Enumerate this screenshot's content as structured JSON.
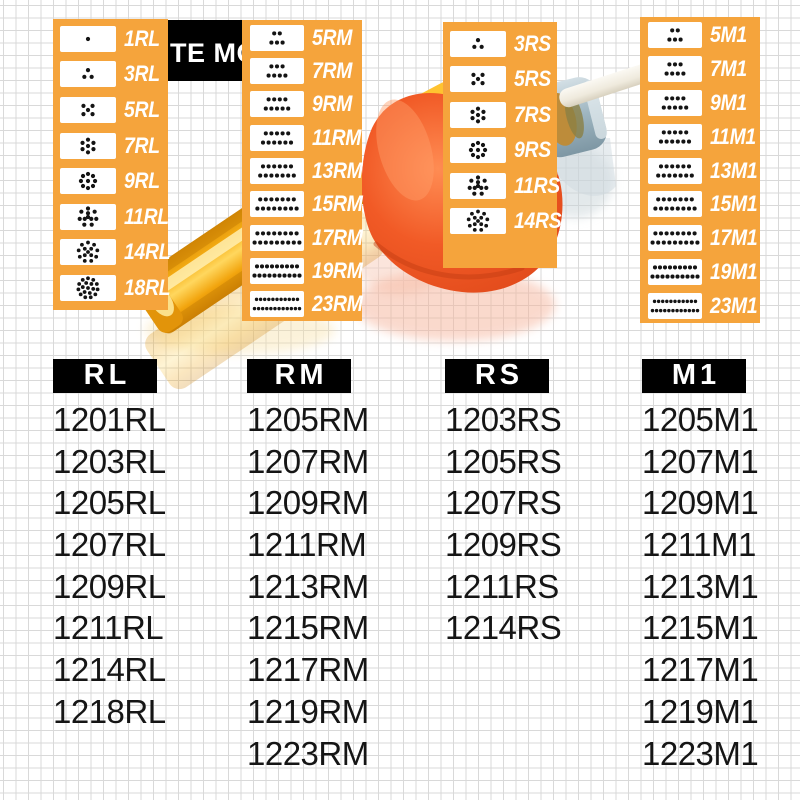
{
  "banner": {
    "visible_text": "TE MO"
  },
  "needle_columns": [
    {
      "name": "RL",
      "pattern": "round",
      "badges": [
        {
          "label": "1RL",
          "needle_count": 1
        },
        {
          "label": "3RL",
          "needle_count": 3
        },
        {
          "label": "5RL",
          "needle_count": 5
        },
        {
          "label": "7RL",
          "needle_count": 7
        },
        {
          "label": "9RL",
          "needle_count": 9
        },
        {
          "label": "11RL",
          "needle_count": 11
        },
        {
          "label": "14RL",
          "needle_count": 14
        },
        {
          "label": "18RL",
          "needle_count": 18
        }
      ]
    },
    {
      "name": "RM",
      "pattern": "magnum",
      "badges": [
        {
          "label": "5RM",
          "needle_count": 5
        },
        {
          "label": "7RM",
          "needle_count": 7
        },
        {
          "label": "9RM",
          "needle_count": 9
        },
        {
          "label": "11RM",
          "needle_count": 11
        },
        {
          "label": "13RM",
          "needle_count": 13
        },
        {
          "label": "15RM",
          "needle_count": 15
        },
        {
          "label": "17RM",
          "needle_count": 17
        },
        {
          "label": "19RM",
          "needle_count": 19
        },
        {
          "label": "23RM",
          "needle_count": 23
        }
      ]
    },
    {
      "name": "RS",
      "pattern": "round",
      "badges": [
        {
          "label": "3RS",
          "needle_count": 3
        },
        {
          "label": "5RS",
          "needle_count": 5
        },
        {
          "label": "7RS",
          "needle_count": 7
        },
        {
          "label": "9RS",
          "needle_count": 9
        },
        {
          "label": "11RS",
          "needle_count": 11
        },
        {
          "label": "14RS",
          "needle_count": 14
        }
      ]
    },
    {
      "name": "M1",
      "pattern": "magnum",
      "badges": [
        {
          "label": "5M1",
          "needle_count": 5
        },
        {
          "label": "7M1",
          "needle_count": 7
        },
        {
          "label": "9M1",
          "needle_count": 9
        },
        {
          "label": "11M1",
          "needle_count": 11
        },
        {
          "label": "13M1",
          "needle_count": 13
        },
        {
          "label": "15M1",
          "needle_count": 15
        },
        {
          "label": "17M1",
          "needle_count": 17
        },
        {
          "label": "19M1",
          "needle_count": 19
        },
        {
          "label": "23M1",
          "needle_count": 23
        }
      ]
    }
  ],
  "model_columns": [
    {
      "header": "RL",
      "models": [
        "1201RL",
        "1203RL",
        "1205RL",
        "1207RL",
        "1209RL",
        "1211RL",
        "1214RL",
        "1218RL"
      ]
    },
    {
      "header": "RM",
      "models": [
        "1205RM",
        "1207RM",
        "1209RM",
        "1211RM",
        "1213RM",
        "1215RM",
        "1217RM",
        "1219RM",
        "1223RM"
      ]
    },
    {
      "header": "RS",
      "models": [
        "1203RS",
        "1205RS",
        "1207RS",
        "1209RS",
        "1211RS",
        "1214RS"
      ]
    },
    {
      "header": "M1",
      "models": [
        "1205M1",
        "1207M1",
        "1209M1",
        "1211M1",
        "1213M1",
        "1215M1",
        "1217M1",
        "1219M1",
        "1223M1"
      ]
    }
  ],
  "colors": {
    "panel_orange": "#F5A43C",
    "banner_black": "#000000",
    "list_text": "#151515",
    "dot_black": "#141414",
    "grid_line": "#D9D9D9",
    "grip_rubber_orange": "#F15A26",
    "grip_yellow_amber": "#F6AE14",
    "cartridge_tip_steel": "#9FB6C1",
    "needle_tube_white": "#F2EFE7"
  }
}
